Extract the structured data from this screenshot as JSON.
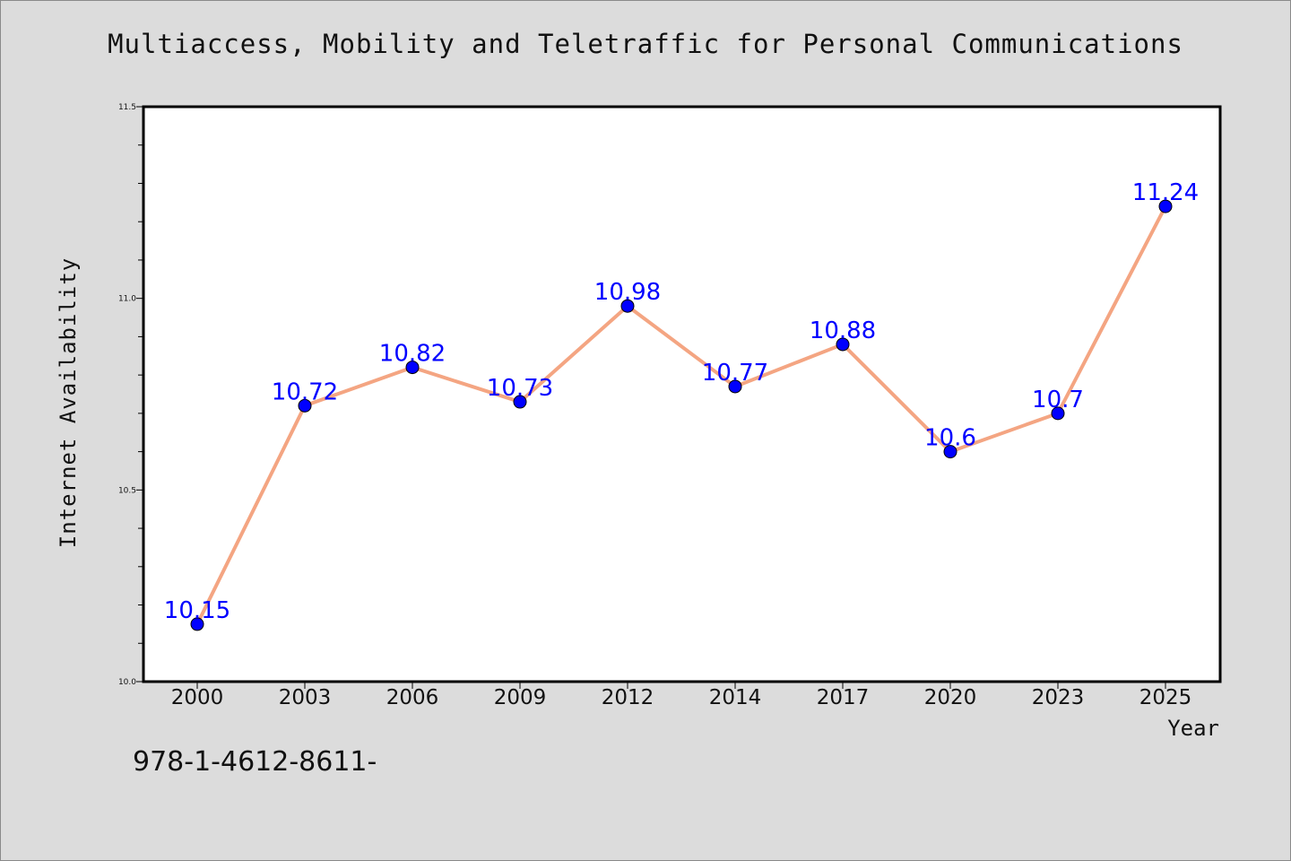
{
  "chart_data": {
    "type": "line",
    "title": "Multiaccess, Mobility and Teletraffic for Personal Communications",
    "xlabel": "Year",
    "ylabel": "Internet Availability",
    "categories": [
      "2000",
      "2003",
      "2006",
      "2009",
      "2012",
      "2014",
      "2017",
      "2020",
      "2023",
      "2025"
    ],
    "series": [
      {
        "values": [
          10.15,
          10.72,
          10.82,
          10.73,
          10.98,
          10.77,
          10.88,
          10.6,
          10.7,
          11.24
        ]
      }
    ],
    "data_labels": [
      "10.15",
      "10.72",
      "10.82",
      "10.73",
      "10.98",
      "10.77",
      "10.88",
      "10.6",
      "10.7",
      "11.24"
    ],
    "ylim": [
      10.0,
      11.5
    ],
    "y_ticks": [
      10.0,
      10.5,
      11.0,
      11.5
    ],
    "y_tick_labels": [
      "10.0",
      "10.5",
      "11.0",
      "11.5"
    ],
    "grid": false,
    "legend": "none",
    "colors": {
      "line": "#f4a582",
      "marker": "#0000ff",
      "data_label": "#0000ff",
      "plot_background": "#ffffff",
      "figure_background": "#dcdcdc"
    }
  },
  "footer": {
    "text": "978-1-4612-8611-"
  }
}
